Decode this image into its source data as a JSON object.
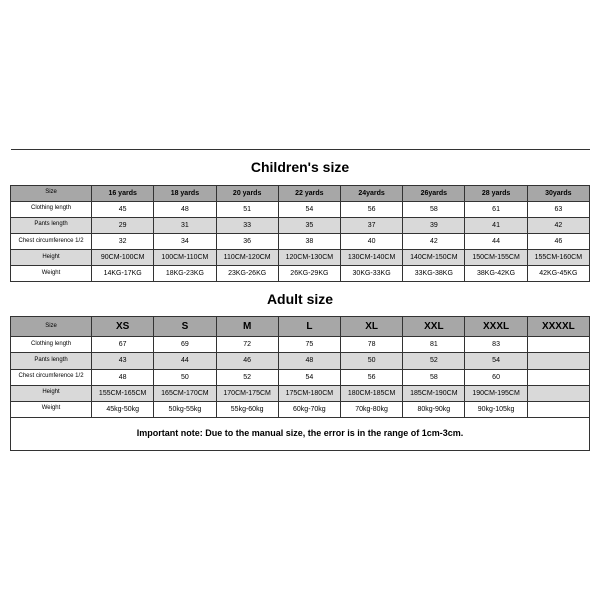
{
  "children": {
    "title": "Children's size",
    "columns": [
      "Size",
      "16 yards",
      "18 yards",
      "20 yards",
      "22 yards",
      "24yards",
      "26yards",
      "28 yards",
      "30yards"
    ],
    "rows": [
      {
        "label": "Clothing length",
        "cells": [
          "45",
          "48",
          "51",
          "54",
          "56",
          "58",
          "61",
          "63"
        ],
        "alt": false
      },
      {
        "label": "Pants length",
        "cells": [
          "29",
          "31",
          "33",
          "35",
          "37",
          "39",
          "41",
          "42"
        ],
        "alt": true
      },
      {
        "label": "Chest circumference 1/2",
        "cells": [
          "32",
          "34",
          "36",
          "38",
          "40",
          "42",
          "44",
          "46"
        ],
        "alt": false
      },
      {
        "label": "Height",
        "cells": [
          "90CM-100CM",
          "100CM-110CM",
          "110CM-120CM",
          "120CM-130CM",
          "130CM-140CM",
          "140CM-150CM",
          "150CM-155CM",
          "155CM-160CM"
        ],
        "alt": true
      },
      {
        "label": "Weight",
        "cells": [
          "14KG-17KG",
          "18KG-23KG",
          "23KG-26KG",
          "26KG-29KG",
          "30KG-33KG",
          "33KG-38KG",
          "38KG-42KG",
          "42KG-45KG"
        ],
        "alt": false
      }
    ]
  },
  "adult": {
    "title": "Adult size",
    "columns": [
      "Size",
      "XS",
      "S",
      "M",
      "L",
      "XL",
      "XXL",
      "XXXL",
      "XXXXL"
    ],
    "rows": [
      {
        "label": "Clothing length",
        "cells": [
          "67",
          "69",
          "72",
          "75",
          "78",
          "81",
          "83",
          ""
        ],
        "alt": false
      },
      {
        "label": "Pants length",
        "cells": [
          "43",
          "44",
          "46",
          "48",
          "50",
          "52",
          "54",
          ""
        ],
        "alt": true
      },
      {
        "label": "Chest circumference 1/2",
        "cells": [
          "48",
          "50",
          "52",
          "54",
          "56",
          "58",
          "60",
          ""
        ],
        "alt": false
      },
      {
        "label": "Height",
        "cells": [
          "155CM-165CM",
          "165CM-170CM",
          "170CM-175CM",
          "175CM-180CM",
          "180CM-185CM",
          "185CM-190CM",
          "190CM-195CM",
          ""
        ],
        "alt": true
      },
      {
        "label": "Weight",
        "cells": [
          "45kg-50kg",
          "50kg-55kg",
          "55kg-60kg",
          "60kg-70kg",
          "70kg-80kg",
          "80kg-90kg",
          "90kg-105kg",
          ""
        ],
        "alt": false
      }
    ]
  },
  "note": "Important note: Due to the manual size, the error is in the range of 1cm-3cm."
}
